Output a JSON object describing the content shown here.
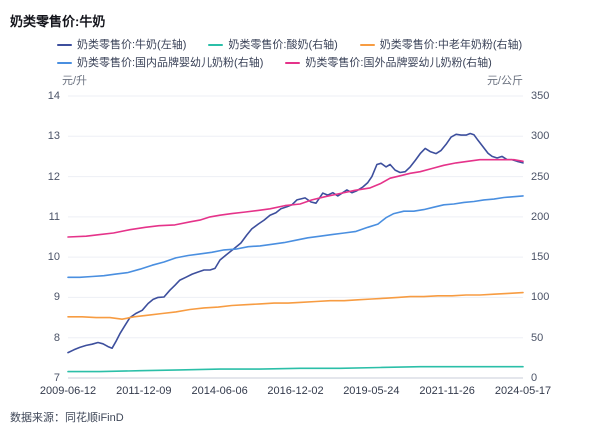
{
  "title": "奶类零售价:牛奶",
  "source": "数据来源：同花顺iFinD",
  "chart_data": {
    "type": "line",
    "title": "奶类零售价:牛奶",
    "legend_position": "top",
    "grid": "horizontal",
    "x_axis": {
      "ticks": [
        "2009-06-12",
        "2011-12-09",
        "2014-06-06",
        "2016-12-02",
        "2019-05-24",
        "2021-11-26",
        "2024-05-17"
      ]
    },
    "left_axis": {
      "unit": "元/升",
      "min": 7,
      "max": 14,
      "ticks": [
        7,
        8,
        9,
        10,
        11,
        12,
        13,
        14
      ]
    },
    "right_axis": {
      "unit": "元/公斤",
      "min": 0,
      "max": 350,
      "ticks": [
        0,
        50,
        100,
        150,
        200,
        250,
        300,
        350
      ]
    },
    "series": [
      {
        "label": "奶类零售价:牛奶(左轴)",
        "axis": "left",
        "color": "#3D4F9D",
        "points": [
          [
            0.0,
            7.63
          ],
          [
            0.013,
            7.7
          ],
          [
            0.026,
            7.76
          ],
          [
            0.04,
            7.81
          ],
          [
            0.053,
            7.84
          ],
          [
            0.066,
            7.88
          ],
          [
            0.077,
            7.85
          ],
          [
            0.088,
            7.78
          ],
          [
            0.097,
            7.74
          ],
          [
            0.105,
            7.9
          ],
          [
            0.114,
            8.1
          ],
          [
            0.125,
            8.3
          ],
          [
            0.136,
            8.5
          ],
          [
            0.149,
            8.6
          ],
          [
            0.163,
            8.68
          ],
          [
            0.176,
            8.85
          ],
          [
            0.187,
            8.95
          ],
          [
            0.198,
            9.0
          ],
          [
            0.211,
            9.01
          ],
          [
            0.224,
            9.18
          ],
          [
            0.235,
            9.3
          ],
          [
            0.246,
            9.43
          ],
          [
            0.259,
            9.5
          ],
          [
            0.273,
            9.58
          ],
          [
            0.286,
            9.63
          ],
          [
            0.299,
            9.68
          ],
          [
            0.312,
            9.68
          ],
          [
            0.323,
            9.72
          ],
          [
            0.334,
            9.93
          ],
          [
            0.347,
            10.05
          ],
          [
            0.358,
            10.15
          ],
          [
            0.369,
            10.25
          ],
          [
            0.38,
            10.35
          ],
          [
            0.393,
            10.55
          ],
          [
            0.404,
            10.7
          ],
          [
            0.418,
            10.82
          ],
          [
            0.431,
            10.92
          ],
          [
            0.444,
            11.04
          ],
          [
            0.457,
            11.1
          ],
          [
            0.468,
            11.2
          ],
          [
            0.481,
            11.25
          ],
          [
            0.492,
            11.3
          ],
          [
            0.503,
            11.42
          ],
          [
            0.521,
            11.47
          ],
          [
            0.534,
            11.37
          ],
          [
            0.545,
            11.34
          ],
          [
            0.56,
            11.59
          ],
          [
            0.571,
            11.54
          ],
          [
            0.582,
            11.6
          ],
          [
            0.593,
            11.52
          ],
          [
            0.613,
            11.67
          ],
          [
            0.624,
            11.6
          ],
          [
            0.635,
            11.65
          ],
          [
            0.648,
            11.74
          ],
          [
            0.659,
            11.85
          ],
          [
            0.668,
            12.0
          ],
          [
            0.679,
            12.3
          ],
          [
            0.688,
            12.33
          ],
          [
            0.699,
            12.24
          ],
          [
            0.708,
            12.3
          ],
          [
            0.719,
            12.16
          ],
          [
            0.73,
            12.1
          ],
          [
            0.741,
            12.12
          ],
          [
            0.752,
            12.24
          ],
          [
            0.763,
            12.4
          ],
          [
            0.774,
            12.57
          ],
          [
            0.785,
            12.7
          ],
          [
            0.796,
            12.62
          ],
          [
            0.809,
            12.57
          ],
          [
            0.82,
            12.65
          ],
          [
            0.831,
            12.8
          ],
          [
            0.842,
            12.98
          ],
          [
            0.853,
            13.05
          ],
          [
            0.864,
            13.03
          ],
          [
            0.875,
            13.03
          ],
          [
            0.884,
            13.07
          ],
          [
            0.892,
            13.04
          ],
          [
            0.901,
            12.9
          ],
          [
            0.912,
            12.74
          ],
          [
            0.923,
            12.58
          ],
          [
            0.932,
            12.5
          ],
          [
            0.943,
            12.46
          ],
          [
            0.954,
            12.5
          ],
          [
            0.965,
            12.42
          ],
          [
            0.976,
            12.42
          ],
          [
            0.987,
            12.38
          ],
          [
            1.0,
            12.34
          ]
        ]
      },
      {
        "label": "奶类零售价:酸奶(右轴)",
        "axis": "right",
        "color": "#2BBFA8",
        "points": [
          [
            0.0,
            8
          ],
          [
            0.07,
            8
          ],
          [
            0.158,
            9
          ],
          [
            0.246,
            10
          ],
          [
            0.334,
            11
          ],
          [
            0.422,
            11
          ],
          [
            0.51,
            12
          ],
          [
            0.598,
            12
          ],
          [
            0.686,
            13
          ],
          [
            0.774,
            14
          ],
          [
            0.862,
            14
          ],
          [
            0.95,
            14
          ],
          [
            1.0,
            14
          ]
        ]
      },
      {
        "label": "奶类零售价:中老年奶粉(右轴)",
        "axis": "right",
        "color": "#F79C42",
        "points": [
          [
            0.0,
            76
          ],
          [
            0.031,
            76
          ],
          [
            0.062,
            75
          ],
          [
            0.092,
            75
          ],
          [
            0.119,
            73
          ],
          [
            0.145,
            76
          ],
          [
            0.176,
            78
          ],
          [
            0.207,
            80
          ],
          [
            0.237,
            82
          ],
          [
            0.268,
            85
          ],
          [
            0.299,
            87
          ],
          [
            0.33,
            88
          ],
          [
            0.36,
            90
          ],
          [
            0.391,
            91
          ],
          [
            0.422,
            92
          ],
          [
            0.453,
            93
          ],
          [
            0.484,
            93
          ],
          [
            0.514,
            94
          ],
          [
            0.545,
            95
          ],
          [
            0.576,
            96
          ],
          [
            0.607,
            96
          ],
          [
            0.637,
            97
          ],
          [
            0.668,
            98
          ],
          [
            0.699,
            99
          ],
          [
            0.725,
            100
          ],
          [
            0.752,
            101
          ],
          [
            0.782,
            101
          ],
          [
            0.813,
            102
          ],
          [
            0.844,
            102
          ],
          [
            0.875,
            103
          ],
          [
            0.905,
            103
          ],
          [
            0.936,
            104
          ],
          [
            0.967,
            105
          ],
          [
            1.0,
            106
          ]
        ]
      },
      {
        "label": "奶类零售价:国内品牌婴幼儿奶粉(右轴)",
        "axis": "right",
        "color": "#4A8FE0",
        "points": [
          [
            0.0,
            125
          ],
          [
            0.026,
            125
          ],
          [
            0.053,
            126
          ],
          [
            0.079,
            127
          ],
          [
            0.105,
            129
          ],
          [
            0.132,
            131
          ],
          [
            0.158,
            135
          ],
          [
            0.185,
            140
          ],
          [
            0.211,
            144
          ],
          [
            0.237,
            149
          ],
          [
            0.264,
            152
          ],
          [
            0.29,
            154
          ],
          [
            0.316,
            156
          ],
          [
            0.343,
            159
          ],
          [
            0.369,
            160
          ],
          [
            0.396,
            163
          ],
          [
            0.422,
            164
          ],
          [
            0.448,
            166
          ],
          [
            0.475,
            168
          ],
          [
            0.501,
            171
          ],
          [
            0.527,
            174
          ],
          [
            0.554,
            176
          ],
          [
            0.58,
            178
          ],
          [
            0.607,
            180
          ],
          [
            0.633,
            182
          ],
          [
            0.659,
            187
          ],
          [
            0.681,
            191
          ],
          [
            0.699,
            199
          ],
          [
            0.716,
            204
          ],
          [
            0.738,
            207
          ],
          [
            0.76,
            207
          ],
          [
            0.782,
            209
          ],
          [
            0.804,
            212
          ],
          [
            0.826,
            215
          ],
          [
            0.848,
            216
          ],
          [
            0.87,
            218
          ],
          [
            0.892,
            219
          ],
          [
            0.914,
            221
          ],
          [
            0.936,
            222
          ],
          [
            0.958,
            224
          ],
          [
            0.98,
            225
          ],
          [
            1.0,
            226
          ]
        ]
      },
      {
        "label": "奶类零售价:国外品牌婴幼儿奶粉(右轴)",
        "axis": "right",
        "color": "#E5338A",
        "points": [
          [
            0.0,
            175
          ],
          [
            0.04,
            176
          ],
          [
            0.07,
            178
          ],
          [
            0.1,
            180
          ],
          [
            0.136,
            184
          ],
          [
            0.17,
            187
          ],
          [
            0.2,
            189
          ],
          [
            0.235,
            190
          ],
          [
            0.27,
            194
          ],
          [
            0.29,
            196
          ],
          [
            0.312,
            200
          ],
          [
            0.334,
            202
          ],
          [
            0.36,
            204
          ],
          [
            0.39,
            206
          ],
          [
            0.418,
            208
          ],
          [
            0.444,
            210
          ],
          [
            0.477,
            214
          ],
          [
            0.51,
            216
          ],
          [
            0.536,
            221
          ],
          [
            0.565,
            225
          ],
          [
            0.598,
            229
          ],
          [
            0.631,
            233
          ],
          [
            0.664,
            236
          ],
          [
            0.686,
            241
          ],
          [
            0.708,
            248
          ],
          [
            0.73,
            251
          ],
          [
            0.752,
            254
          ],
          [
            0.774,
            256
          ],
          [
            0.8,
            260
          ],
          [
            0.826,
            264
          ],
          [
            0.853,
            267
          ],
          [
            0.879,
            269
          ],
          [
            0.905,
            271
          ],
          [
            0.932,
            271
          ],
          [
            0.96,
            271
          ],
          [
            0.98,
            271
          ],
          [
            1.0,
            269
          ]
        ]
      }
    ]
  }
}
